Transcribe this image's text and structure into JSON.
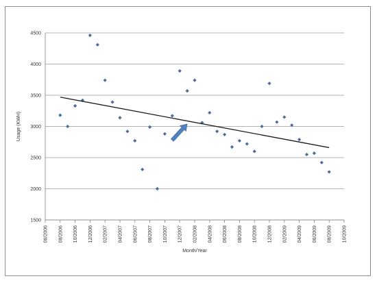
{
  "chart_data": {
    "type": "scatter",
    "title": "",
    "xlabel": "Month/Year",
    "ylabel": "Usage (KWH)",
    "ylim": [
      1500,
      4500
    ],
    "yticks": [
      "1500",
      "2000",
      "2500",
      "3000",
      "3500",
      "4000",
      "4500"
    ],
    "xticks": [
      "06/2006",
      "08/2006",
      "10/2006",
      "12/2006",
      "02/2007",
      "04/2007",
      "06/2007",
      "08/2007",
      "10/2007",
      "12/2007",
      "02/2008",
      "04/2008",
      "06/2008",
      "08/2008",
      "10/2008",
      "12/2008",
      "02/2009",
      "04/2009",
      "06/2009",
      "08/2009",
      "10/2009"
    ],
    "xlim": [
      "2006-06",
      "2009-10"
    ],
    "grid": "horizontal",
    "legend": "none",
    "series": [
      {
        "points": [
          [
            "2006-08",
            3180
          ],
          [
            "2006-09",
            3000
          ],
          [
            "2006-10",
            3330
          ],
          [
            "2006-11",
            3420
          ],
          [
            "2006-12",
            4460
          ],
          [
            "2007-01",
            4310
          ],
          [
            "2007-02",
            3740
          ],
          [
            "2007-03",
            3390
          ],
          [
            "2007-04",
            3140
          ],
          [
            "2007-05",
            2920
          ],
          [
            "2007-06",
            2770
          ],
          [
            "2007-07",
            2310
          ],
          [
            "2007-08",
            2990
          ],
          [
            "2007-09",
            2000
          ],
          [
            "2007-10",
            2880
          ],
          [
            "2007-11",
            3170
          ],
          [
            "2007-12",
            3890
          ],
          [
            "2008-01",
            3570
          ],
          [
            "2008-02",
            3740
          ],
          [
            "2008-03",
            3060
          ],
          [
            "2008-04",
            3220
          ],
          [
            "2008-05",
            2920
          ],
          [
            "2008-06",
            2870
          ],
          [
            "2008-07",
            2670
          ],
          [
            "2008-08",
            2770
          ],
          [
            "2008-09",
            2720
          ],
          [
            "2008-10",
            2600
          ],
          [
            "2008-11",
            3000
          ],
          [
            "2008-12",
            3690
          ],
          [
            "2009-01",
            3070
          ],
          [
            "2009-02",
            3150
          ],
          [
            "2009-03",
            3020
          ],
          [
            "2009-04",
            2790
          ],
          [
            "2009-05",
            2550
          ],
          [
            "2009-06",
            2570
          ],
          [
            "2009-07",
            2420
          ],
          [
            "2009-08",
            2270
          ]
        ]
      }
    ],
    "trendline": {
      "start": [
        "2006-08",
        3470
      ],
      "end": [
        "2009-08",
        2660
      ]
    },
    "annotation": {
      "type": "arrow",
      "color": "#4f81bd",
      "from": [
        "2007-11",
        2780
      ],
      "to": [
        "2008-01",
        3040
      ]
    },
    "colors": {
      "marker": "#4a6d9c",
      "trendline": "#1a1a1a",
      "gridline": "#9a9a9a",
      "axis": "#7f7f7f",
      "arrow": "#4f81bd"
    }
  }
}
